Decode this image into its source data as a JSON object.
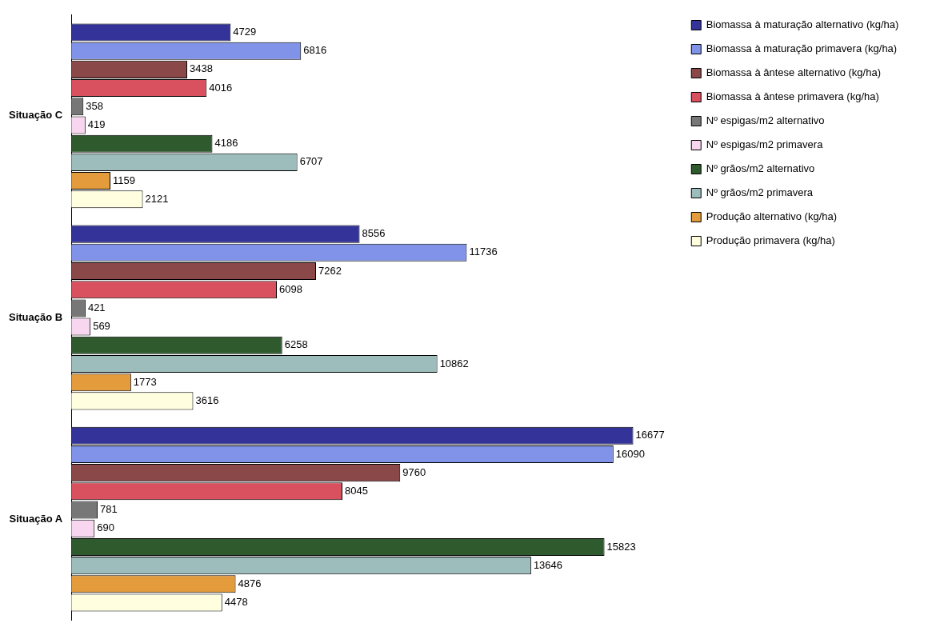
{
  "chart_data": {
    "type": "bar",
    "orientation": "horizontal",
    "categories": [
      "Situação C",
      "Situação B",
      "Situação A"
    ],
    "series": [
      {
        "name": "Biomassa à maturação alternativo (kg/ha)",
        "color": "#333399",
        "values": [
          4729,
          8556,
          16677
        ]
      },
      {
        "name": "Biomassa à maturação primavera (kg/ha)",
        "color": "#8093e8",
        "values": [
          6816,
          11736,
          16090
        ]
      },
      {
        "name": "Biomassa à ântese alternativo (kg/ha)",
        "color": "#8a4848",
        "values": [
          3438,
          7262,
          9760
        ]
      },
      {
        "name": "Biomassa à ântese primavera (kg/ha)",
        "color": "#d9505e",
        "values": [
          4016,
          6098,
          8045
        ]
      },
      {
        "name": "Nº espigas/m2 alternativo",
        "color": "#777777",
        "values": [
          358,
          421,
          781
        ]
      },
      {
        "name": "Nº espigas/m2 primavera",
        "color": "#f8d6ef",
        "values": [
          419,
          569,
          690
        ]
      },
      {
        "name": "Nº grãos/m2 alternativo",
        "color": "#2e5a2e",
        "values": [
          4186,
          6258,
          15823
        ]
      },
      {
        "name": "Nº grãos/m2 primavera",
        "color": "#9dbcbc",
        "values": [
          6707,
          10862,
          13646
        ]
      },
      {
        "name": "Produção alternativo (kg/ha)",
        "color": "#e39b3c",
        "values": [
          1159,
          1773,
          4876
        ]
      },
      {
        "name": "Produção primavera (kg/ha)",
        "color": "#ffffe0",
        "values": [
          2121,
          3616,
          4478
        ]
      }
    ],
    "data_labels": true,
    "grid": false,
    "legend": "top right",
    "tick_labels": "y"
  }
}
